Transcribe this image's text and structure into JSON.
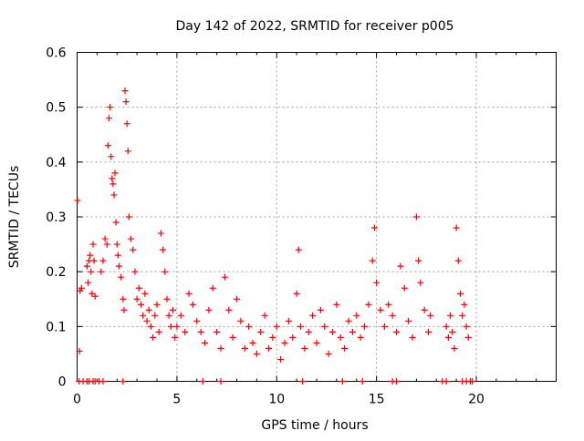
{
  "chart_data": {
    "type": "scatter",
    "title": "Day 142 of 2022, SRMTID for receiver p005",
    "xlabel": "GPS time / hours",
    "ylabel": "SRMTID / TECUs",
    "xlim": [
      0,
      24
    ],
    "ylim": [
      0,
      0.6
    ],
    "x_ticks": [
      0,
      5,
      10,
      15,
      20
    ],
    "y_ticks": [
      0,
      0.1,
      0.2,
      0.3,
      0.4,
      0.5,
      0.6
    ],
    "x_tick_labels": [
      "0",
      "5",
      "10",
      "15",
      "20"
    ],
    "y_tick_labels": [
      "0",
      "0.1",
      "0.2",
      "0.3",
      "0.4",
      "0.5",
      "0.6"
    ],
    "grid": true,
    "marker": "plus",
    "color": "#ff0000",
    "series": [
      {
        "name": "SRMTID",
        "points": [
          [
            0.02,
            0.33
          ],
          [
            0.12,
            0.055
          ],
          [
            0.15,
            0.165
          ],
          [
            0.22,
            0.17
          ],
          [
            0.5,
            0.21
          ],
          [
            0.55,
            0.18
          ],
          [
            0.6,
            0.22
          ],
          [
            0.65,
            0.23
          ],
          [
            0.7,
            0.2
          ],
          [
            0.75,
            0.16
          ],
          [
            0.8,
            0.25
          ],
          [
            0.85,
            0.22
          ],
          [
            0.9,
            0.155
          ],
          [
            1.2,
            0.2
          ],
          [
            1.3,
            0.22
          ],
          [
            1.4,
            0.26
          ],
          [
            1.5,
            0.25
          ],
          [
            1.55,
            0.43
          ],
          [
            1.6,
            0.48
          ],
          [
            1.65,
            0.5
          ],
          [
            1.7,
            0.41
          ],
          [
            1.75,
            0.37
          ],
          [
            1.8,
            0.36
          ],
          [
            1.85,
            0.34
          ],
          [
            1.9,
            0.38
          ],
          [
            1.95,
            0.29
          ],
          [
            2.0,
            0.25
          ],
          [
            2.05,
            0.23
          ],
          [
            2.1,
            0.21
          ],
          [
            2.2,
            0.19
          ],
          [
            2.3,
            0.15
          ],
          [
            2.35,
            0.13
          ],
          [
            2.4,
            0.53
          ],
          [
            2.45,
            0.51
          ],
          [
            2.5,
            0.47
          ],
          [
            2.55,
            0.42
          ],
          [
            2.6,
            0.3
          ],
          [
            2.7,
            0.26
          ],
          [
            2.8,
            0.24
          ],
          [
            2.9,
            0.2
          ],
          [
            3.0,
            0.15
          ],
          [
            3.1,
            0.17
          ],
          [
            3.2,
            0.14
          ],
          [
            3.3,
            0.12
          ],
          [
            3.4,
            0.16
          ],
          [
            3.5,
            0.11
          ],
          [
            3.6,
            0.13
          ],
          [
            3.7,
            0.1
          ],
          [
            3.8,
            0.08
          ],
          [
            3.9,
            0.12
          ],
          [
            4.0,
            0.14
          ],
          [
            4.1,
            0.09
          ],
          [
            4.2,
            0.27
          ],
          [
            4.3,
            0.24
          ],
          [
            4.4,
            0.2
          ],
          [
            4.5,
            0.15
          ],
          [
            4.6,
            0.12
          ],
          [
            4.7,
            0.1
          ],
          [
            4.8,
            0.13
          ],
          [
            4.9,
            0.08
          ],
          [
            5.0,
            0.1
          ],
          [
            5.2,
            0.12
          ],
          [
            5.4,
            0.09
          ],
          [
            5.6,
            0.16
          ],
          [
            5.8,
            0.14
          ],
          [
            6.0,
            0.11
          ],
          [
            6.2,
            0.09
          ],
          [
            6.4,
            0.07
          ],
          [
            6.6,
            0.13
          ],
          [
            6.8,
            0.17
          ],
          [
            7.0,
            0.09
          ],
          [
            7.2,
            0.06
          ],
          [
            7.4,
            0.19
          ],
          [
            7.6,
            0.13
          ],
          [
            7.8,
            0.08
          ],
          [
            8.0,
            0.15
          ],
          [
            8.2,
            0.11
          ],
          [
            8.4,
            0.06
          ],
          [
            8.6,
            0.1
          ],
          [
            8.8,
            0.07
          ],
          [
            9.0,
            0.05
          ],
          [
            9.2,
            0.09
          ],
          [
            9.4,
            0.12
          ],
          [
            9.6,
            0.06
          ],
          [
            9.8,
            0.08
          ],
          [
            10.0,
            0.1
          ],
          [
            10.2,
            0.04
          ],
          [
            10.4,
            0.07
          ],
          [
            10.6,
            0.11
          ],
          [
            10.8,
            0.08
          ],
          [
            11.0,
            0.16
          ],
          [
            11.1,
            0.24
          ],
          [
            11.2,
            0.1
          ],
          [
            11.4,
            0.06
          ],
          [
            11.6,
            0.09
          ],
          [
            11.8,
            0.12
          ],
          [
            12.0,
            0.07
          ],
          [
            12.2,
            0.13
          ],
          [
            12.4,
            0.1
          ],
          [
            12.6,
            0.05
          ],
          [
            12.8,
            0.09
          ],
          [
            13.0,
            0.14
          ],
          [
            13.2,
            0.08
          ],
          [
            13.4,
            0.06
          ],
          [
            13.6,
            0.11
          ],
          [
            13.8,
            0.09
          ],
          [
            14.0,
            0.12
          ],
          [
            14.2,
            0.08
          ],
          [
            14.4,
            0.1
          ],
          [
            14.6,
            0.14
          ],
          [
            14.8,
            0.22
          ],
          [
            14.9,
            0.28
          ],
          [
            15.0,
            0.18
          ],
          [
            15.2,
            0.13
          ],
          [
            15.4,
            0.1
          ],
          [
            15.6,
            0.14
          ],
          [
            15.8,
            0.12
          ],
          [
            16.0,
            0.09
          ],
          [
            16.2,
            0.21
          ],
          [
            16.4,
            0.17
          ],
          [
            16.6,
            0.11
          ],
          [
            16.8,
            0.08
          ],
          [
            17.0,
            0.3
          ],
          [
            17.1,
            0.22
          ],
          [
            17.2,
            0.18
          ],
          [
            17.4,
            0.13
          ],
          [
            17.6,
            0.09
          ],
          [
            17.7,
            0.12
          ],
          [
            18.5,
            0.1
          ],
          [
            18.6,
            0.08
          ],
          [
            18.7,
            0.12
          ],
          [
            18.8,
            0.09
          ],
          [
            18.9,
            0.06
          ],
          [
            19.0,
            0.28
          ],
          [
            19.1,
            0.22
          ],
          [
            19.2,
            0.16
          ],
          [
            19.3,
            0.12
          ],
          [
            19.4,
            0.14
          ],
          [
            19.5,
            0.1
          ],
          [
            19.6,
            0.08
          ]
        ],
        "zero_x": [
          0.1,
          0.3,
          0.5,
          0.6,
          0.8,
          0.9,
          1.1,
          1.3,
          2.3,
          6.3,
          7.2,
          11.3,
          13.3,
          14.3,
          15.8,
          16.0,
          18.3,
          18.5,
          19.3,
          19.5,
          19.7,
          19.8
        ]
      }
    ]
  }
}
